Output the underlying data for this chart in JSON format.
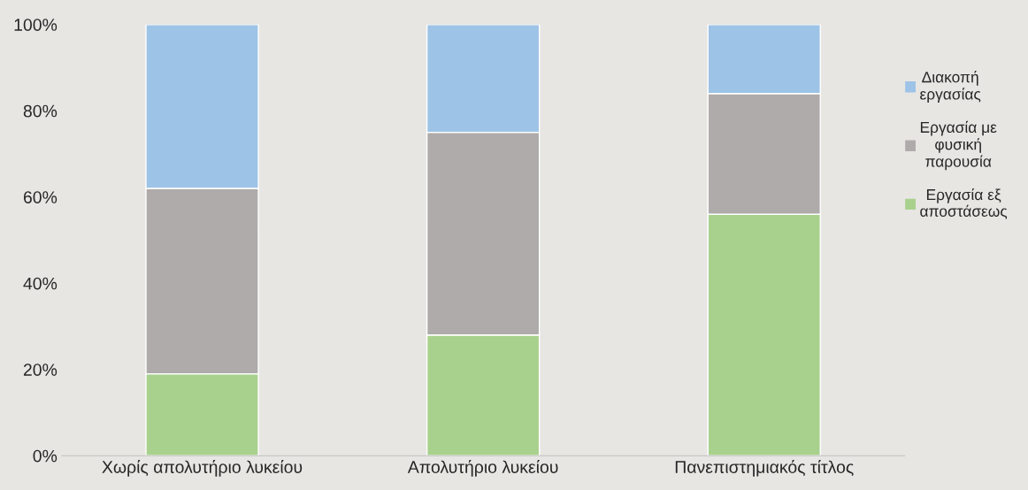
{
  "chart_data": {
    "type": "bar",
    "stacked": true,
    "categories": [
      "Χωρίς απολυτήριο λυκείου",
      "Απολυτήριο λυκείου",
      "Πανεπιστημιακός τίτλος"
    ],
    "series": [
      {
        "name": "Εργασία εξ αποστάσεως",
        "color": "#a9d18e",
        "values": [
          19,
          28,
          56
        ]
      },
      {
        "name": "Εργασία με φυσική παρουσία",
        "color": "#afabab",
        "values": [
          43,
          47,
          28
        ]
      },
      {
        "name": "Διακοπή εργασίας",
        "color": "#9dc3e6",
        "values": [
          38,
          25,
          16
        ]
      }
    ],
    "ylim": [
      0,
      100
    ],
    "yticks": [
      {
        "value": 0,
        "label": "0%"
      },
      {
        "value": 20,
        "label": "20%"
      },
      {
        "value": 40,
        "label": "40%"
      },
      {
        "value": 60,
        "label": "60%"
      },
      {
        "value": 80,
        "label": "80%"
      },
      {
        "value": 100,
        "label": "100%"
      }
    ],
    "grid": false,
    "legend": "right"
  }
}
